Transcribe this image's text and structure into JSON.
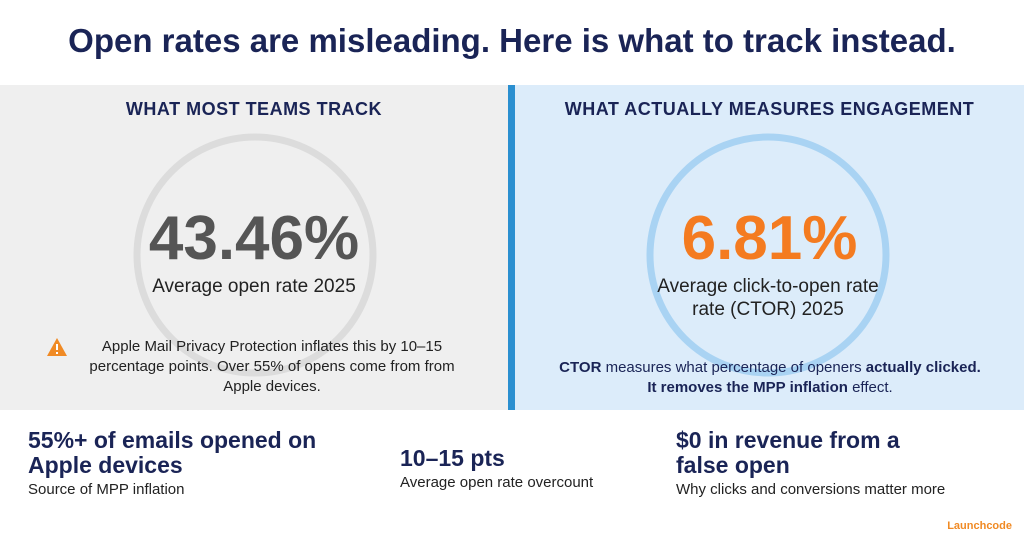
{
  "title": "Open rates are misleading. Here is what to track instead.",
  "left_panel": {
    "heading": "WHAT MOST TEAMS TRACK",
    "value": "43.46%",
    "caption": "Average open rate 2025",
    "warning": "Apple Mail Privacy Protection inflates this by 10–15 percentage points. Over 55% of opens come from from Apple devices."
  },
  "right_panel": {
    "heading": "WHAT ACTUALLY MEASURES ENGAGEMENT",
    "value": "6.81%",
    "caption": "Average click-to-open rate rate (CTOR) 2025",
    "note": [
      {
        "text": "CTOR",
        "bold": true
      },
      {
        "text": " measures what percentage of openers ",
        "bold": false
      },
      {
        "text": "actually clicked. It removes the MPP inflation",
        "bold": true
      },
      {
        "text": " effect.",
        "bold": false
      }
    ]
  },
  "stats": [
    {
      "value": "55%+ of emails opened on Apple devices",
      "caption": "Source of MPP inflation"
    },
    {
      "value": "10–15 pts",
      "caption": "Average open rate overcount"
    },
    {
      "value": "$0 in revenue from a false open",
      "caption": "Why clicks and conversions matter more"
    }
  ],
  "logo": "Launchcode"
}
